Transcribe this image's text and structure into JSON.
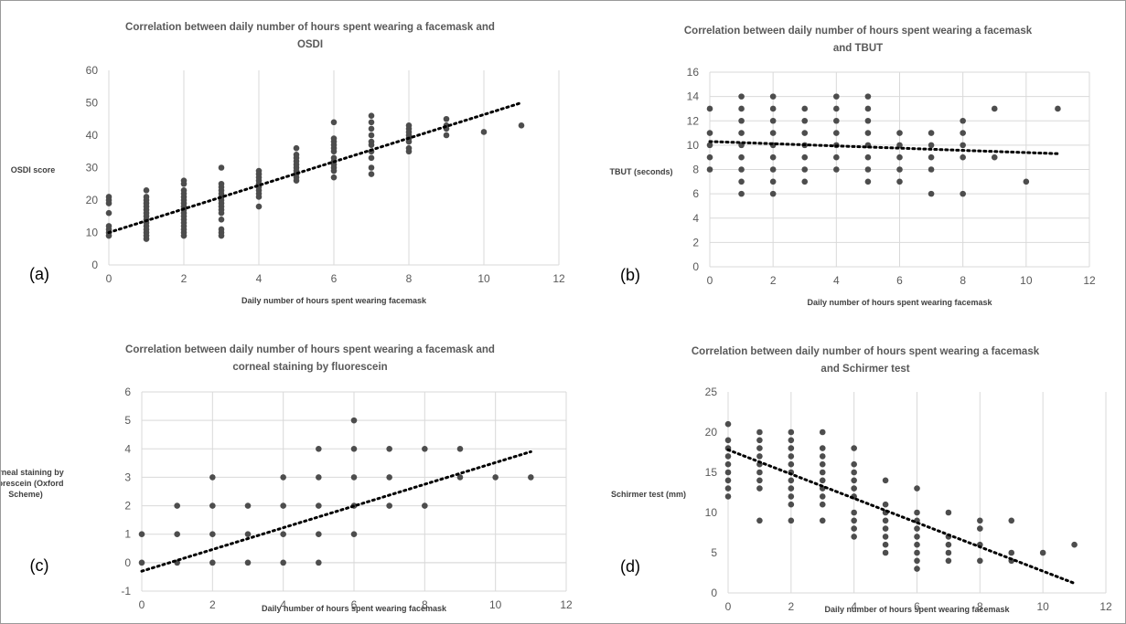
{
  "colors": {
    "marker": "#4d4d4d",
    "grid": "#d9d9d9",
    "trend": "#000000",
    "text": "#595959",
    "frame": "#9a9a9a"
  },
  "chart_data": [
    {
      "panel": "(a)",
      "type": "scatter",
      "title": [
        "Correlation between daily number of hours spent wearing a facemask and",
        "OSDI"
      ],
      "xlabel": "Daily number of hours spent wearing facemask",
      "ylabel": [
        "OSDI score"
      ],
      "xlim": [
        0,
        12
      ],
      "ylim": [
        0,
        60
      ],
      "xticks": [
        0,
        2,
        4,
        6,
        8,
        10,
        12
      ],
      "yticks": [
        0,
        10,
        20,
        30,
        40,
        50,
        60
      ],
      "grid": "vertical",
      "points": [
        [
          0,
          9
        ],
        [
          0,
          10
        ],
        [
          0,
          11
        ],
        [
          0,
          12
        ],
        [
          0,
          16
        ],
        [
          0,
          19
        ],
        [
          0,
          20
        ],
        [
          0,
          21
        ],
        [
          1,
          8
        ],
        [
          1,
          9
        ],
        [
          1,
          10
        ],
        [
          1,
          11
        ],
        [
          1,
          12
        ],
        [
          1,
          13
        ],
        [
          1,
          14
        ],
        [
          1,
          15
        ],
        [
          1,
          16
        ],
        [
          1,
          17
        ],
        [
          1,
          18
        ],
        [
          1,
          19
        ],
        [
          1,
          20
        ],
        [
          1,
          21
        ],
        [
          1,
          23
        ],
        [
          2,
          9
        ],
        [
          2,
          10
        ],
        [
          2,
          11
        ],
        [
          2,
          12
        ],
        [
          2,
          13
        ],
        [
          2,
          14
        ],
        [
          2,
          15
        ],
        [
          2,
          16
        ],
        [
          2,
          17
        ],
        [
          2,
          18
        ],
        [
          2,
          19
        ],
        [
          2,
          20
        ],
        [
          2,
          21
        ],
        [
          2,
          22
        ],
        [
          2,
          23
        ],
        [
          2,
          25
        ],
        [
          2,
          26
        ],
        [
          3,
          9
        ],
        [
          3,
          10
        ],
        [
          3,
          11
        ],
        [
          3,
          14
        ],
        [
          3,
          16
        ],
        [
          3,
          17
        ],
        [
          3,
          18
        ],
        [
          3,
          19
        ],
        [
          3,
          20
        ],
        [
          3,
          21
        ],
        [
          3,
          22
        ],
        [
          3,
          23
        ],
        [
          3,
          24
        ],
        [
          3,
          25
        ],
        [
          3,
          30
        ],
        [
          4,
          18
        ],
        [
          4,
          21
        ],
        [
          4,
          22
        ],
        [
          4,
          23
        ],
        [
          4,
          24
        ],
        [
          4,
          25
        ],
        [
          4,
          26
        ],
        [
          4,
          27
        ],
        [
          4,
          28
        ],
        [
          4,
          29
        ],
        [
          5,
          26
        ],
        [
          5,
          27
        ],
        [
          5,
          28
        ],
        [
          5,
          29
        ],
        [
          5,
          30
        ],
        [
          5,
          31
        ],
        [
          5,
          32
        ],
        [
          5,
          33
        ],
        [
          5,
          34
        ],
        [
          5,
          36
        ],
        [
          6,
          27
        ],
        [
          6,
          29
        ],
        [
          6,
          30
        ],
        [
          6,
          31
        ],
        [
          6,
          32
        ],
        [
          6,
          33
        ],
        [
          6,
          35
        ],
        [
          6,
          36
        ],
        [
          6,
          37
        ],
        [
          6,
          38
        ],
        [
          6,
          39
        ],
        [
          6,
          44
        ],
        [
          7,
          28
        ],
        [
          7,
          30
        ],
        [
          7,
          33
        ],
        [
          7,
          35
        ],
        [
          7,
          37
        ],
        [
          7,
          38
        ],
        [
          7,
          40
        ],
        [
          7,
          42
        ],
        [
          7,
          44
        ],
        [
          7,
          46
        ],
        [
          8,
          35
        ],
        [
          8,
          36
        ],
        [
          8,
          38
        ],
        [
          8,
          39
        ],
        [
          8,
          40
        ],
        [
          8,
          41
        ],
        [
          8,
          42
        ],
        [
          8,
          43
        ],
        [
          9,
          40
        ],
        [
          9,
          42
        ],
        [
          9,
          43
        ],
        [
          9,
          45
        ],
        [
          10,
          41
        ],
        [
          11,
          43
        ]
      ],
      "trend": [
        [
          0,
          10
        ],
        [
          11,
          50
        ]
      ]
    },
    {
      "panel": "(b)",
      "type": "scatter",
      "title": [
        "Correlation between daily number of hours spent wearing a facemask",
        "and TBUT"
      ],
      "xlabel": "Daily number of hours spent wearing facemask",
      "ylabel": [
        "TBUT (seconds)"
      ],
      "xlim": [
        0,
        12
      ],
      "ylim": [
        0,
        16
      ],
      "xticks": [
        0,
        2,
        4,
        6,
        8,
        10,
        12
      ],
      "yticks": [
        0,
        2,
        4,
        6,
        8,
        10,
        12,
        14,
        16
      ],
      "grid": "both",
      "points": [
        [
          0,
          8
        ],
        [
          0,
          9
        ],
        [
          0,
          10
        ],
        [
          0,
          11
        ],
        [
          0,
          13
        ],
        [
          1,
          6
        ],
        [
          1,
          7
        ],
        [
          1,
          8
        ],
        [
          1,
          9
        ],
        [
          1,
          10
        ],
        [
          1,
          11
        ],
        [
          1,
          12
        ],
        [
          1,
          13
        ],
        [
          1,
          14
        ],
        [
          2,
          6
        ],
        [
          2,
          7
        ],
        [
          2,
          8
        ],
        [
          2,
          9
        ],
        [
          2,
          10
        ],
        [
          2,
          11
        ],
        [
          2,
          12
        ],
        [
          2,
          13
        ],
        [
          2,
          14
        ],
        [
          3,
          7
        ],
        [
          3,
          8
        ],
        [
          3,
          9
        ],
        [
          3,
          10
        ],
        [
          3,
          11
        ],
        [
          3,
          12
        ],
        [
          3,
          13
        ],
        [
          4,
          8
        ],
        [
          4,
          9
        ],
        [
          4,
          10
        ],
        [
          4,
          11
        ],
        [
          4,
          12
        ],
        [
          4,
          13
        ],
        [
          4,
          14
        ],
        [
          5,
          7
        ],
        [
          5,
          8
        ],
        [
          5,
          9
        ],
        [
          5,
          10
        ],
        [
          5,
          11
        ],
        [
          5,
          12
        ],
        [
          5,
          13
        ],
        [
          5,
          14
        ],
        [
          6,
          7
        ],
        [
          6,
          8
        ],
        [
          6,
          9
        ],
        [
          6,
          10
        ],
        [
          6,
          11
        ],
        [
          7,
          6
        ],
        [
          7,
          8
        ],
        [
          7,
          9
        ],
        [
          7,
          10
        ],
        [
          7,
          11
        ],
        [
          8,
          6
        ],
        [
          8,
          9
        ],
        [
          8,
          10
        ],
        [
          8,
          11
        ],
        [
          8,
          12
        ],
        [
          9,
          9
        ],
        [
          9,
          13
        ],
        [
          10,
          7
        ],
        [
          11,
          13
        ]
      ],
      "trend": [
        [
          0,
          10.3
        ],
        [
          11,
          9.3
        ]
      ]
    },
    {
      "panel": "(c)",
      "type": "scatter",
      "title": [
        "Correlation between daily number of hours spent wearing a facemask and",
        "corneal staining by fluorescein"
      ],
      "xlabel": "Daily number of hours spent wearing facemask",
      "ylabel": [
        "Corneal staining by",
        "fluorescein (Oxford",
        "Scheme)"
      ],
      "xlim": [
        0,
        12
      ],
      "ylim": [
        -1,
        6
      ],
      "xticks": [
        0,
        2,
        4,
        6,
        8,
        10,
        12
      ],
      "yticks": [
        -1,
        0,
        1,
        2,
        3,
        4,
        5,
        6
      ],
      "grid": "both",
      "points": [
        [
          0,
          0
        ],
        [
          0,
          1
        ],
        [
          1,
          0
        ],
        [
          1,
          1
        ],
        [
          1,
          2
        ],
        [
          2,
          0
        ],
        [
          2,
          1
        ],
        [
          2,
          2
        ],
        [
          2,
          3
        ],
        [
          3,
          0
        ],
        [
          3,
          1
        ],
        [
          3,
          2
        ],
        [
          4,
          0
        ],
        [
          4,
          1
        ],
        [
          4,
          2
        ],
        [
          4,
          3
        ],
        [
          5,
          0
        ],
        [
          5,
          1
        ],
        [
          5,
          2
        ],
        [
          5,
          3
        ],
        [
          5,
          4
        ],
        [
          6,
          1
        ],
        [
          6,
          2
        ],
        [
          6,
          3
        ],
        [
          6,
          4
        ],
        [
          6,
          5
        ],
        [
          7,
          2
        ],
        [
          7,
          3
        ],
        [
          7,
          4
        ],
        [
          8,
          2
        ],
        [
          8,
          4
        ],
        [
          9,
          3
        ],
        [
          9,
          4
        ],
        [
          10,
          3
        ],
        [
          11,
          3
        ]
      ],
      "trend": [
        [
          0,
          -0.3
        ],
        [
          11,
          3.9
        ]
      ]
    },
    {
      "panel": "(d)",
      "type": "scatter",
      "title": [
        "Correlation between daily number of hours spent wearing a facemask",
        "and Schirmer test"
      ],
      "xlabel": "Daily number of hours spent wearing facemask",
      "ylabel": [
        "Schirmer test (mm)"
      ],
      "xlim": [
        0,
        12
      ],
      "ylim": [
        0,
        25
      ],
      "xticks": [
        0,
        2,
        4,
        6,
        8,
        10,
        12
      ],
      "yticks": [
        0,
        5,
        10,
        15,
        20,
        25
      ],
      "grid": "vertical",
      "points": [
        [
          0,
          12
        ],
        [
          0,
          13
        ],
        [
          0,
          14
        ],
        [
          0,
          15
        ],
        [
          0,
          16
        ],
        [
          0,
          17
        ],
        [
          0,
          18
        ],
        [
          0,
          19
        ],
        [
          0,
          21
        ],
        [
          1,
          9
        ],
        [
          1,
          13
        ],
        [
          1,
          14
        ],
        [
          1,
          15
        ],
        [
          1,
          16
        ],
        [
          1,
          17
        ],
        [
          1,
          18
        ],
        [
          1,
          19
        ],
        [
          1,
          20
        ],
        [
          2,
          9
        ],
        [
          2,
          11
        ],
        [
          2,
          12
        ],
        [
          2,
          13
        ],
        [
          2,
          14
        ],
        [
          2,
          15
        ],
        [
          2,
          16
        ],
        [
          2,
          17
        ],
        [
          2,
          18
        ],
        [
          2,
          19
        ],
        [
          2,
          20
        ],
        [
          3,
          9
        ],
        [
          3,
          11
        ],
        [
          3,
          12
        ],
        [
          3,
          13
        ],
        [
          3,
          14
        ],
        [
          3,
          15
        ],
        [
          3,
          16
        ],
        [
          3,
          17
        ],
        [
          3,
          18
        ],
        [
          3,
          20
        ],
        [
          4,
          7
        ],
        [
          4,
          8
        ],
        [
          4,
          9
        ],
        [
          4,
          10
        ],
        [
          4,
          12
        ],
        [
          4,
          13
        ],
        [
          4,
          14
        ],
        [
          4,
          15
        ],
        [
          4,
          16
        ],
        [
          4,
          18
        ],
        [
          5,
          5
        ],
        [
          5,
          6
        ],
        [
          5,
          7
        ],
        [
          5,
          8
        ],
        [
          5,
          9
        ],
        [
          5,
          10
        ],
        [
          5,
          11
        ],
        [
          5,
          14
        ],
        [
          6,
          3
        ],
        [
          6,
          4
        ],
        [
          6,
          5
        ],
        [
          6,
          6
        ],
        [
          6,
          7
        ],
        [
          6,
          8
        ],
        [
          6,
          9
        ],
        [
          6,
          10
        ],
        [
          6,
          13
        ],
        [
          7,
          4
        ],
        [
          7,
          5
        ],
        [
          7,
          6
        ],
        [
          7,
          7
        ],
        [
          7,
          10
        ],
        [
          8,
          4
        ],
        [
          8,
          6
        ],
        [
          8,
          8
        ],
        [
          8,
          9
        ],
        [
          9,
          4
        ],
        [
          9,
          5
        ],
        [
          9,
          9
        ],
        [
          10,
          5
        ],
        [
          11,
          6
        ]
      ],
      "trend": [
        [
          0,
          17.8
        ],
        [
          11,
          1.2
        ]
      ]
    }
  ]
}
